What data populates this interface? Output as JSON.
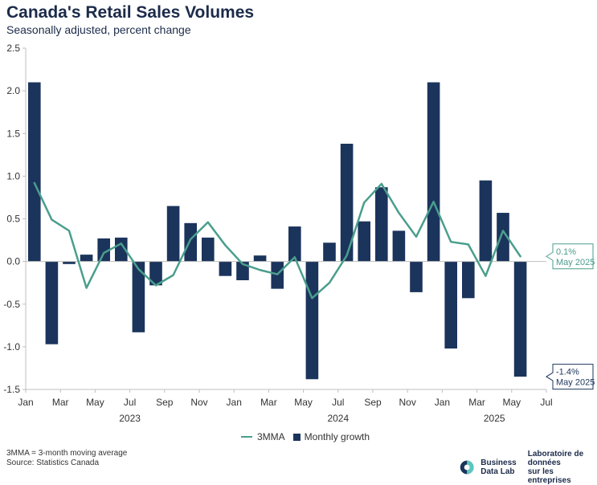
{
  "chart_data": {
    "type": "bar+line",
    "title": "Canada's Retail Sales Volumes",
    "subtitle": "Seasonally adjusted, percent change",
    "ylim": [
      -1.5,
      2.5
    ],
    "yticks": [
      "2.5",
      "2.0",
      "1.5",
      "1.0",
      "0.5",
      "0.0",
      "-0.5",
      "-1.0",
      "-1.5"
    ],
    "ytick_values": [
      2.5,
      2.0,
      1.5,
      1.0,
      0.5,
      0.0,
      -0.5,
      -1.0,
      -1.5
    ],
    "xticks": [
      {
        "month": 0,
        "label": "Jan"
      },
      {
        "month": 2,
        "label": "Mar"
      },
      {
        "month": 4,
        "label": "May"
      },
      {
        "month": 6,
        "label": "Jul"
      },
      {
        "month": 8,
        "label": "Sep"
      },
      {
        "month": 10,
        "label": "Nov"
      },
      {
        "month": 12,
        "label": "Jan"
      },
      {
        "month": 14,
        "label": "Mar"
      },
      {
        "month": 16,
        "label": "May"
      },
      {
        "month": 18,
        "label": "Jul"
      },
      {
        "month": 20,
        "label": "Sep"
      },
      {
        "month": 22,
        "label": "Nov"
      },
      {
        "month": 24,
        "label": "Jan"
      },
      {
        "month": 26,
        "label": "Mar"
      },
      {
        "month": 28,
        "label": "May"
      },
      {
        "month": 30,
        "label": "Jul"
      }
    ],
    "years": [
      {
        "month": 6,
        "label": "2023"
      },
      {
        "month": 18,
        "label": "2024"
      },
      {
        "month": 27,
        "label": "2025"
      }
    ],
    "series": [
      {
        "name": "Monthly growth",
        "type": "bar",
        "color": "#1b345c",
        "values": [
          2.1,
          -0.97,
          -0.03,
          0.08,
          0.27,
          0.28,
          -0.83,
          -0.28,
          0.65,
          0.45,
          0.28,
          -0.17,
          -0.22,
          0.07,
          -0.32,
          0.41,
          -1.38,
          0.22,
          1.38,
          0.47,
          0.87,
          0.36,
          -0.36,
          2.1,
          -1.02,
          -0.43,
          0.95,
          0.57,
          -1.35
        ]
      },
      {
        "name": "3MMA",
        "type": "line",
        "color": "#4a9e8c",
        "values": [
          0.92,
          0.49,
          0.36,
          -0.31,
          0.1,
          0.21,
          -0.09,
          -0.28,
          -0.16,
          0.26,
          0.46,
          0.19,
          -0.03,
          -0.1,
          -0.15,
          0.05,
          -0.43,
          -0.25,
          0.07,
          0.69,
          0.91,
          0.57,
          0.29,
          0.7,
          0.23,
          0.2,
          -0.17,
          0.36,
          0.06
        ]
      }
    ],
    "callouts": [
      {
        "series": "3MMA",
        "value_text": "0.1%",
        "date_text": "May 2025",
        "value": 0.06
      },
      {
        "series": "Monthly growth",
        "value_text": "-1.4%",
        "date_text": "May 2025",
        "value": -1.35
      }
    ],
    "legend": [
      "3MMA",
      "Monthly growth"
    ],
    "legend_position": "bottom-center",
    "grid": false
  },
  "footnote": {
    "line1": "3MMA = 3-month moving average",
    "line2": "Source: Statistics Canada"
  },
  "logo": {
    "en_line1": "Business",
    "en_line2": "Data Lab",
    "fr_line1": "Laboratoire de données",
    "fr_line2": "sur les entreprises"
  },
  "colors": {
    "bar": "#1b345c",
    "line": "#4a9e8c",
    "title": "#1c2b4a"
  }
}
